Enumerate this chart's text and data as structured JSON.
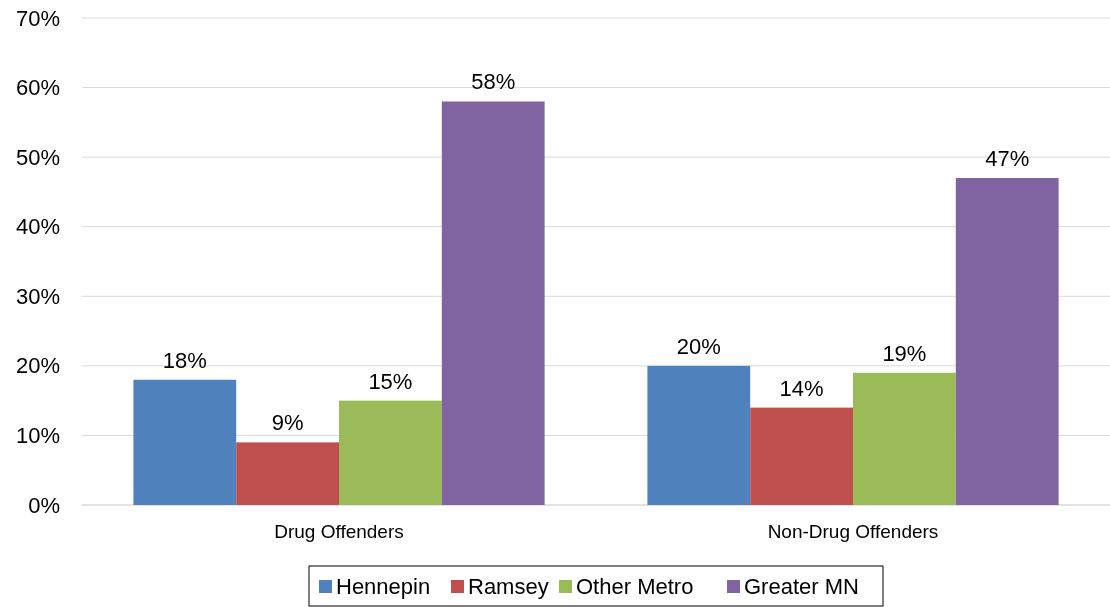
{
  "chart_data": {
    "type": "bar",
    "categories": [
      "Drug Offenders",
      "Non-Drug Offenders"
    ],
    "series": [
      {
        "name": "Hennepin",
        "color": "#4f81bd",
        "values": [
          18,
          20
        ],
        "value_labels": [
          "18%",
          "20%"
        ]
      },
      {
        "name": "Ramsey",
        "color": "#c0504d",
        "values": [
          9,
          14
        ],
        "value_labels": [
          "9%",
          "14%"
        ]
      },
      {
        "name": "Other Metro",
        "color": "#9bbb59",
        "values": [
          15,
          19
        ],
        "value_labels": [
          "15%",
          "19%"
        ]
      },
      {
        "name": "Greater MN",
        "color": "#8064a2",
        "values": [
          58,
          47
        ],
        "value_labels": [
          "58%",
          "47%"
        ]
      }
    ],
    "ylim": [
      0,
      70
    ],
    "yticks": [
      {
        "value": 0,
        "label": "0%"
      },
      {
        "value": 10,
        "label": "10%"
      },
      {
        "value": 20,
        "label": "20%"
      },
      {
        "value": 30,
        "label": "30%"
      },
      {
        "value": 40,
        "label": "40%"
      },
      {
        "value": 50,
        "label": "50%"
      },
      {
        "value": 60,
        "label": "60%"
      },
      {
        "value": 70,
        "label": "70%"
      }
    ],
    "grid": "y",
    "legend": "bottom"
  }
}
